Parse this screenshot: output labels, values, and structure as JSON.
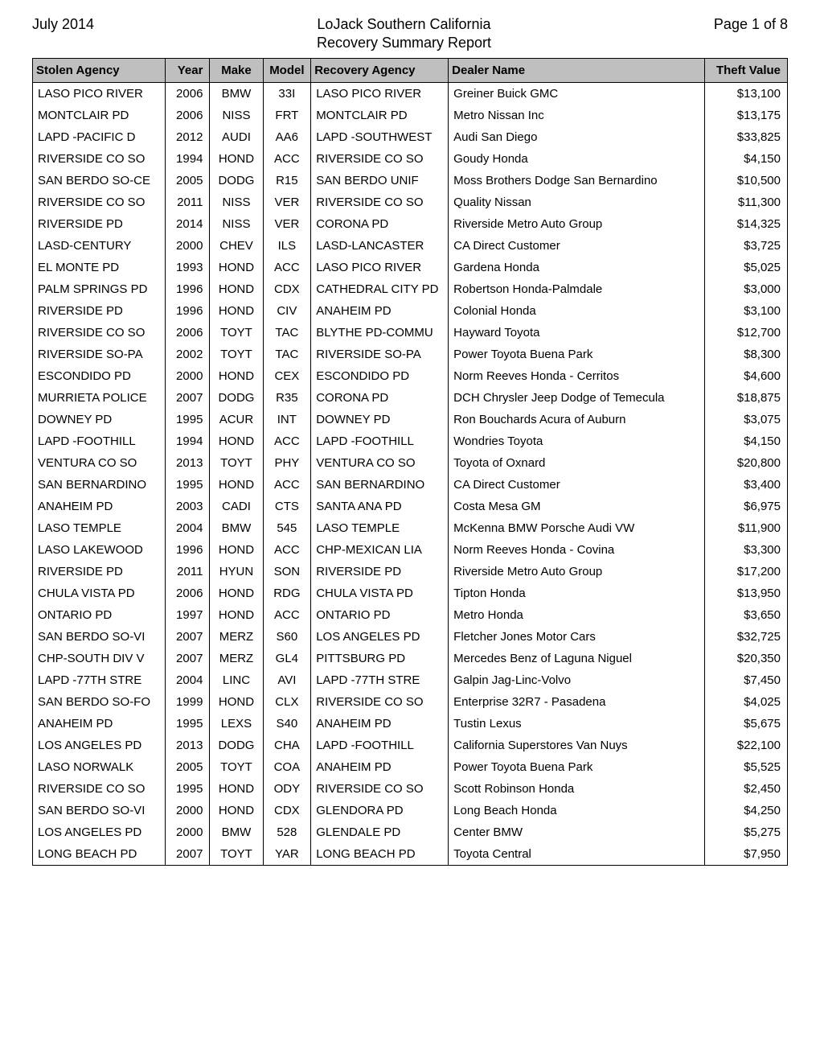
{
  "header": {
    "date": "July 2014",
    "title_main": "LoJack Southern California",
    "title_sub": "Recovery Summary Report",
    "page": "Page 1 of 8"
  },
  "table": {
    "columns": [
      "Stolen Agency",
      "Year",
      "Make",
      "Model",
      "Recovery Agency",
      "Dealer Name",
      "Theft Value"
    ],
    "rows": [
      [
        "LASO PICO RIVER",
        "2006",
        "BMW",
        "33I",
        "LASO PICO RIVER",
        "Greiner Buick GMC",
        "$13,100"
      ],
      [
        "MONTCLAIR PD",
        "2006",
        "NISS",
        "FRT",
        "MONTCLAIR PD",
        "Metro Nissan Inc",
        "$13,175"
      ],
      [
        "LAPD -PACIFIC D",
        "2012",
        "AUDI",
        "AA6",
        "LAPD -SOUTHWEST",
        "Audi San Diego",
        "$33,825"
      ],
      [
        "RIVERSIDE CO SO",
        "1994",
        "HOND",
        "ACC",
        "RIVERSIDE CO SO",
        "Goudy Honda",
        "$4,150"
      ],
      [
        "SAN BERDO SO-CE",
        "2005",
        "DODG",
        "R15",
        "SAN BERDO UNIF",
        "Moss Brothers Dodge San Bernardino",
        "$10,500"
      ],
      [
        "RIVERSIDE CO SO",
        "2011",
        "NISS",
        "VER",
        "RIVERSIDE CO SO",
        "Quality Nissan",
        "$11,300"
      ],
      [
        "RIVERSIDE PD",
        "2014",
        "NISS",
        "VER",
        "CORONA PD",
        "Riverside Metro Auto Group",
        "$14,325"
      ],
      [
        "LASD-CENTURY",
        "2000",
        "CHEV",
        "ILS",
        "LASD-LANCASTER",
        "CA Direct Customer",
        "$3,725"
      ],
      [
        "EL MONTE PD",
        "1993",
        "HOND",
        "ACC",
        "LASO PICO RIVER",
        "Gardena Honda",
        "$5,025"
      ],
      [
        "PALM SPRINGS PD",
        "1996",
        "HOND",
        "CDX",
        "CATHEDRAL CITY PD",
        "Robertson Honda-Palmdale",
        "$3,000"
      ],
      [
        "RIVERSIDE PD",
        "1996",
        "HOND",
        "CIV",
        "ANAHEIM PD",
        "Colonial Honda",
        "$3,100"
      ],
      [
        "RIVERSIDE CO SO",
        "2006",
        "TOYT",
        "TAC",
        "BLYTHE PD-COMMU",
        "Hayward Toyota",
        "$12,700"
      ],
      [
        "RIVERSIDE SO-PA",
        "2002",
        "TOYT",
        "TAC",
        "RIVERSIDE SO-PA",
        "Power Toyota Buena Park",
        "$8,300"
      ],
      [
        "ESCONDIDO PD",
        "2000",
        "HOND",
        "CEX",
        "ESCONDIDO PD",
        "Norm Reeves Honda - Cerritos",
        "$4,600"
      ],
      [
        "MURRIETA POLICE",
        "2007",
        "DODG",
        "R35",
        "CORONA PD",
        "DCH Chrysler Jeep Dodge of Temecula",
        "$18,875"
      ],
      [
        "DOWNEY PD",
        "1995",
        "ACUR",
        "INT",
        "DOWNEY PD",
        "Ron Bouchards Acura of Auburn",
        "$3,075"
      ],
      [
        "LAPD -FOOTHILL",
        "1994",
        "HOND",
        "ACC",
        "LAPD -FOOTHILL",
        "Wondries Toyota",
        "$4,150"
      ],
      [
        "VENTURA CO SO",
        "2013",
        "TOYT",
        "PHY",
        "VENTURA CO SO",
        "Toyota of Oxnard",
        "$20,800"
      ],
      [
        "SAN BERNARDINO",
        "1995",
        "HOND",
        "ACC",
        "SAN BERNARDINO",
        "CA Direct Customer",
        "$3,400"
      ],
      [
        "ANAHEIM PD",
        "2003",
        "CADI",
        "CTS",
        "SANTA ANA PD",
        "Costa Mesa GM",
        "$6,975"
      ],
      [
        "LASO TEMPLE",
        "2004",
        "BMW",
        "545",
        "LASO TEMPLE",
        "McKenna BMW Porsche Audi VW",
        "$11,900"
      ],
      [
        "LASO LAKEWOOD",
        "1996",
        "HOND",
        "ACC",
        "CHP-MEXICAN LIA",
        "Norm Reeves Honda - Covina",
        "$3,300"
      ],
      [
        "RIVERSIDE PD",
        "2011",
        "HYUN",
        "SON",
        "RIVERSIDE PD",
        "Riverside Metro Auto Group",
        "$17,200"
      ],
      [
        "CHULA VISTA PD",
        "2006",
        "HOND",
        "RDG",
        "CHULA VISTA PD",
        "Tipton Honda",
        "$13,950"
      ],
      [
        "ONTARIO PD",
        "1997",
        "HOND",
        "ACC",
        "ONTARIO PD",
        "Metro Honda",
        "$3,650"
      ],
      [
        "SAN BERDO SO-VI",
        "2007",
        "MERZ",
        "S60",
        "LOS ANGELES PD",
        "Fletcher Jones Motor Cars",
        "$32,725"
      ],
      [
        "CHP-SOUTH DIV V",
        "2007",
        "MERZ",
        "GL4",
        "PITTSBURG PD",
        "Mercedes Benz of Laguna Niguel",
        "$20,350"
      ],
      [
        "LAPD -77TH STRE",
        "2004",
        "LINC",
        "AVI",
        "LAPD -77TH STRE",
        "Galpin Jag-Linc-Volvo",
        "$7,450"
      ],
      [
        "SAN BERDO SO-FO",
        "1999",
        "HOND",
        "CLX",
        "RIVERSIDE CO SO",
        "Enterprise 32R7 - Pasadena",
        "$4,025"
      ],
      [
        "ANAHEIM PD",
        "1995",
        "LEXS",
        "S40",
        "ANAHEIM PD",
        "Tustin Lexus",
        "$5,675"
      ],
      [
        "LOS ANGELES PD",
        "2013",
        "DODG",
        "CHA",
        "LAPD -FOOTHILL",
        "California Superstores Van Nuys",
        "$22,100"
      ],
      [
        "LASO NORWALK",
        "2005",
        "TOYT",
        "COA",
        "ANAHEIM PD",
        "Power Toyota Buena Park",
        "$5,525"
      ],
      [
        "RIVERSIDE CO SO",
        "1995",
        "HOND",
        "ODY",
        "RIVERSIDE CO SO",
        "Scott Robinson Honda",
        "$2,450"
      ],
      [
        "SAN BERDO SO-VI",
        "2000",
        "HOND",
        "CDX",
        "GLENDORA PD",
        "Long Beach Honda",
        "$4,250"
      ],
      [
        "LOS ANGELES PD",
        "2000",
        "BMW",
        "528",
        "GLENDALE PD",
        "Center BMW",
        "$5,275"
      ],
      [
        "LONG BEACH PD",
        "2007",
        "TOYT",
        "YAR",
        "LONG BEACH PD",
        "Toyota Central",
        "$7,950"
      ]
    ]
  },
  "styling": {
    "header_bg": "#bfbfbf",
    "border_color": "#000000",
    "font_family": "Arial",
    "title_fontsize": 18,
    "cell_fontsize": 15,
    "header_fontsize": 15
  }
}
